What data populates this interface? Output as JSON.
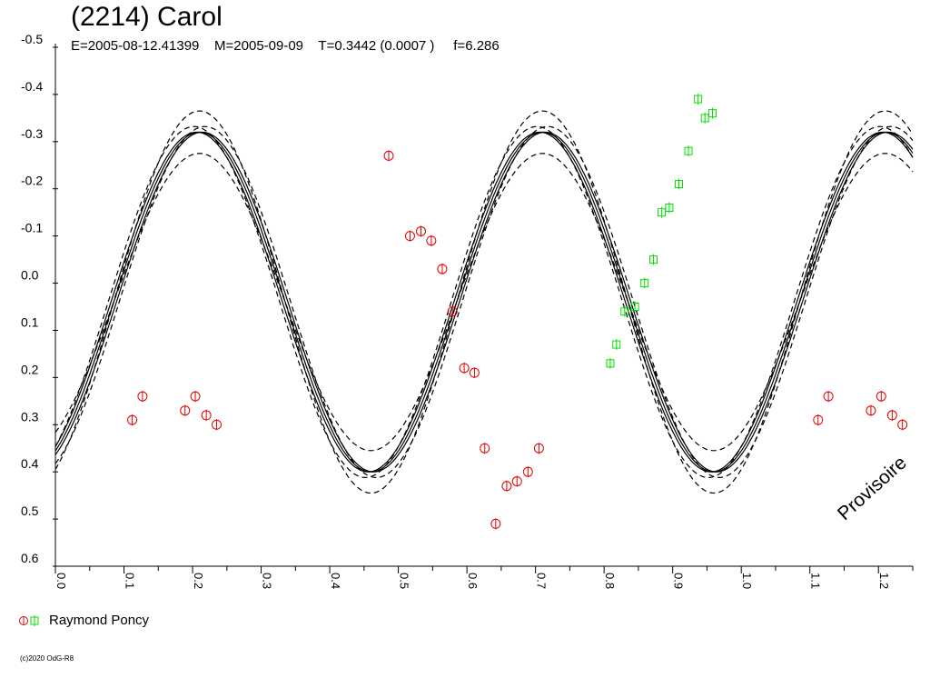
{
  "title": "(2214) Carol",
  "subtitle": "E=2005-08-12.41399    M=2005-09-09    T=0.3442 (0.0007 )     f=6.286",
  "legend": {
    "label": "Raymond Poncy"
  },
  "copyright": "(c)2020 OdG-R8",
  "watermark": "Provisoire",
  "colors": {
    "red_series": "#e00000",
    "green_series": "#00e000",
    "curve": "#000000"
  },
  "chart_data": {
    "type": "scatter",
    "xlabel": "",
    "ylabel": "",
    "xlim": [
      0.0,
      1.25
    ],
    "ylim": [
      -0.5,
      0.6
    ],
    "y_inverted": true,
    "x_ticks": [
      "0.0",
      "0.1",
      "0.2",
      "0.3",
      "0.4",
      "0.5",
      "0.6",
      "0.7",
      "0.8",
      "0.9",
      "1.0",
      "1.1",
      "1.2"
    ],
    "y_ticks": [
      "-0.5",
      "-0.4",
      "-0.3",
      "-0.2",
      "-0.1",
      "0.0",
      "0.1",
      "0.2",
      "0.3",
      "0.4",
      "0.5",
      "0.6"
    ],
    "fit_curve": {
      "mean": 0.04,
      "amplitude": 0.36,
      "cycles_per_phase_unit": 2,
      "phase_offset": 0.21
    },
    "series": [
      {
        "marker": "circle",
        "color": "#e00000",
        "points": [
          [
            0.112,
            0.29
          ],
          [
            0.127,
            0.24
          ],
          [
            0.189,
            0.27
          ],
          [
            0.204,
            0.24
          ],
          [
            0.22,
            0.28
          ],
          [
            0.235,
            0.3
          ],
          [
            0.486,
            -0.27
          ],
          [
            0.517,
            -0.1
          ],
          [
            0.533,
            -0.11
          ],
          [
            0.548,
            -0.09
          ],
          [
            0.564,
            -0.03
          ],
          [
            0.579,
            0.06
          ],
          [
            0.596,
            0.18
          ],
          [
            0.611,
            0.19
          ],
          [
            0.626,
            0.35
          ],
          [
            0.642,
            0.51
          ],
          [
            0.658,
            0.43
          ],
          [
            0.673,
            0.42
          ],
          [
            0.689,
            0.4
          ],
          [
            0.705,
            0.35
          ],
          [
            1.112,
            0.29
          ],
          [
            1.127,
            0.24
          ],
          [
            1.189,
            0.27
          ],
          [
            1.204,
            0.24
          ],
          [
            1.22,
            0.28
          ],
          [
            1.235,
            0.3
          ]
        ]
      },
      {
        "marker": "square",
        "color": "#00e000",
        "points": [
          [
            0.809,
            0.17
          ],
          [
            0.818,
            0.13
          ],
          [
            0.83,
            0.06
          ],
          [
            0.845,
            0.05
          ],
          [
            0.859,
            0.0
          ],
          [
            0.872,
            -0.05
          ],
          [
            0.884,
            -0.15
          ],
          [
            0.895,
            -0.16
          ],
          [
            0.909,
            -0.21
          ],
          [
            0.923,
            -0.28
          ],
          [
            0.937,
            -0.39
          ],
          [
            0.947,
            -0.35
          ],
          [
            0.958,
            -0.36
          ]
        ]
      }
    ]
  }
}
